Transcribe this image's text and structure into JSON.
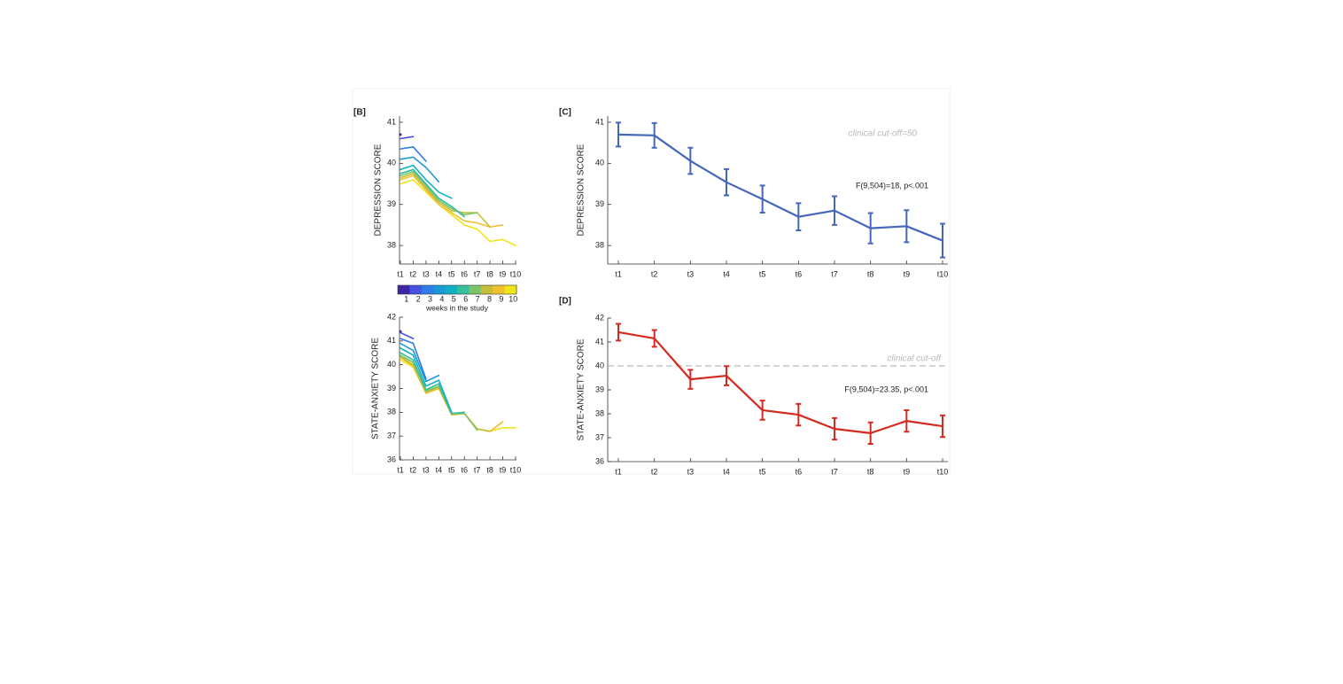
{
  "chart_data": [
    {
      "type": "line",
      "panel": "[B]",
      "ylabel": "DEPRESSION SCORE",
      "categories": [
        "t1",
        "t2",
        "t3",
        "t4",
        "t5",
        "t6",
        "t7",
        "t8",
        "t9",
        "t10"
      ],
      "ylim": [
        37.55,
        41.15
      ],
      "yticks": [
        38,
        39,
        40,
        41
      ],
      "colorbar_label": "weeks in the study",
      "series": [
        {
          "name": "1",
          "color": "#3e26a8",
          "values": [
            40.7,
            null,
            null,
            null,
            null,
            null,
            null,
            null,
            null,
            null
          ]
        },
        {
          "name": "2",
          "color": "#4352e0",
          "values": [
            40.6,
            40.65,
            null,
            null,
            null,
            null,
            null,
            null,
            null,
            null
          ]
        },
        {
          "name": "3",
          "color": "#2f7ce8",
          "values": [
            40.35,
            40.4,
            40.05,
            null,
            null,
            null,
            null,
            null,
            null,
            null
          ]
        },
        {
          "name": "4",
          "color": "#1a98d8",
          "values": [
            40.1,
            40.15,
            39.9,
            39.55,
            null,
            null,
            null,
            null,
            null,
            null
          ]
        },
        {
          "name": "5",
          "color": "#12b0c4",
          "values": [
            39.85,
            39.95,
            39.6,
            39.3,
            39.15,
            null,
            null,
            null,
            null,
            null
          ]
        },
        {
          "name": "6",
          "color": "#35bfa0",
          "values": [
            39.75,
            39.85,
            39.5,
            39.15,
            38.95,
            38.7,
            null,
            null,
            null,
            null
          ]
        },
        {
          "name": "7",
          "color": "#7cc46a",
          "values": [
            39.7,
            39.8,
            39.45,
            39.1,
            38.9,
            38.75,
            38.8,
            null,
            null,
            null
          ]
        },
        {
          "name": "8",
          "color": "#c6bd38",
          "values": [
            39.65,
            39.75,
            39.4,
            39.05,
            38.85,
            38.8,
            38.8,
            38.45,
            null,
            null
          ]
        },
        {
          "name": "9",
          "color": "#f1c02f",
          "values": [
            39.6,
            39.7,
            39.35,
            39.0,
            38.8,
            38.6,
            38.55,
            38.45,
            38.5,
            null
          ]
        },
        {
          "name": "10",
          "color": "#f0e51a",
          "values": [
            39.5,
            39.6,
            39.3,
            39.0,
            38.75,
            38.5,
            38.4,
            38.1,
            38.15,
            38.0
          ]
        }
      ]
    },
    {
      "type": "line",
      "ylabel": "STATE-ANXIETY SCORE",
      "categories": [
        "t1",
        "t2",
        "t3",
        "t4",
        "t5",
        "t6",
        "t7",
        "t8",
        "t9",
        "t10"
      ],
      "ylim": [
        36,
        42
      ],
      "yticks": [
        36,
        37,
        38,
        39,
        40,
        41,
        42
      ],
      "series": [
        {
          "color": "#3e26a8",
          "values": [
            41.4,
            null,
            null,
            null,
            null,
            null,
            null,
            null,
            null,
            null
          ]
        },
        {
          "color": "#4352e0",
          "values": [
            41.35,
            41.1,
            null,
            null,
            null,
            null,
            null,
            null,
            null,
            null
          ]
        },
        {
          "color": "#2f7ce8",
          "values": [
            41.1,
            40.9,
            39.4,
            null,
            null,
            null,
            null,
            null,
            null,
            null
          ]
        },
        {
          "color": "#1a98d8",
          "values": [
            40.9,
            40.6,
            39.3,
            39.55,
            null,
            null,
            null,
            null,
            null,
            null
          ]
        },
        {
          "color": "#12b0c4",
          "values": [
            40.7,
            40.4,
            39.1,
            39.35,
            38.0,
            null,
            null,
            null,
            null,
            null
          ]
        },
        {
          "color": "#35bfa0",
          "values": [
            40.5,
            40.2,
            38.95,
            39.2,
            37.95,
            38.0,
            null,
            null,
            null,
            null
          ]
        },
        {
          "color": "#7cc46a",
          "values": [
            40.4,
            40.1,
            38.9,
            39.1,
            37.95,
            37.95,
            37.25,
            null,
            null,
            null
          ]
        },
        {
          "color": "#c6bd38",
          "values": [
            40.35,
            40.0,
            38.85,
            39.05,
            37.9,
            37.95,
            37.3,
            37.2,
            null,
            null
          ]
        },
        {
          "color": "#f1c02f",
          "values": [
            40.3,
            39.95,
            38.8,
            39.0,
            37.9,
            37.95,
            37.3,
            37.2,
            37.6,
            null
          ]
        },
        {
          "color": "#f0e51a",
          "values": [
            40.2,
            39.9,
            38.8,
            39.0,
            37.9,
            37.95,
            37.3,
            37.2,
            37.35,
            37.35
          ]
        }
      ]
    },
    {
      "type": "errorline",
      "panel": "[C]",
      "ylabel": "DEPRESSION SCORE",
      "categories": [
        "t1",
        "t2",
        "t3",
        "t4",
        "t5",
        "t6",
        "t7",
        "t8",
        "t9",
        "t10"
      ],
      "values": [
        40.7,
        40.68,
        40.06,
        39.54,
        39.13,
        38.7,
        38.85,
        38.42,
        38.47,
        38.12
      ],
      "errors": [
        0.29,
        0.3,
        0.32,
        0.32,
        0.33,
        0.33,
        0.35,
        0.37,
        0.39,
        0.41
      ],
      "color": "#4466bb",
      "ylim": [
        37.55,
        41.15
      ],
      "yticks": [
        38,
        39,
        40,
        41
      ],
      "cutoff_label": "clinical cut-off=50",
      "stat_label": "F(9,504)=18, p<.001"
    },
    {
      "type": "errorline",
      "panel": "[D]",
      "ylabel": "STATE-ANXIETY SCORE",
      "categories": [
        "t1",
        "t2",
        "t3",
        "t4",
        "t5",
        "t6",
        "t7",
        "t8",
        "t9",
        "t10"
      ],
      "values": [
        41.41,
        41.15,
        39.44,
        39.59,
        38.15,
        37.96,
        37.37,
        37.19,
        37.7,
        37.48
      ],
      "errors": [
        0.35,
        0.35,
        0.4,
        0.4,
        0.4,
        0.45,
        0.45,
        0.45,
        0.45,
        0.45
      ],
      "color": "#d42a20",
      "ylim": [
        36,
        42
      ],
      "yticks": [
        36,
        37,
        38,
        39,
        40,
        41,
        42
      ],
      "cutoff": 40,
      "cutoff_label": "clinical cut-off",
      "stat_label": "F(9,504)=23.35, p<.001"
    }
  ]
}
